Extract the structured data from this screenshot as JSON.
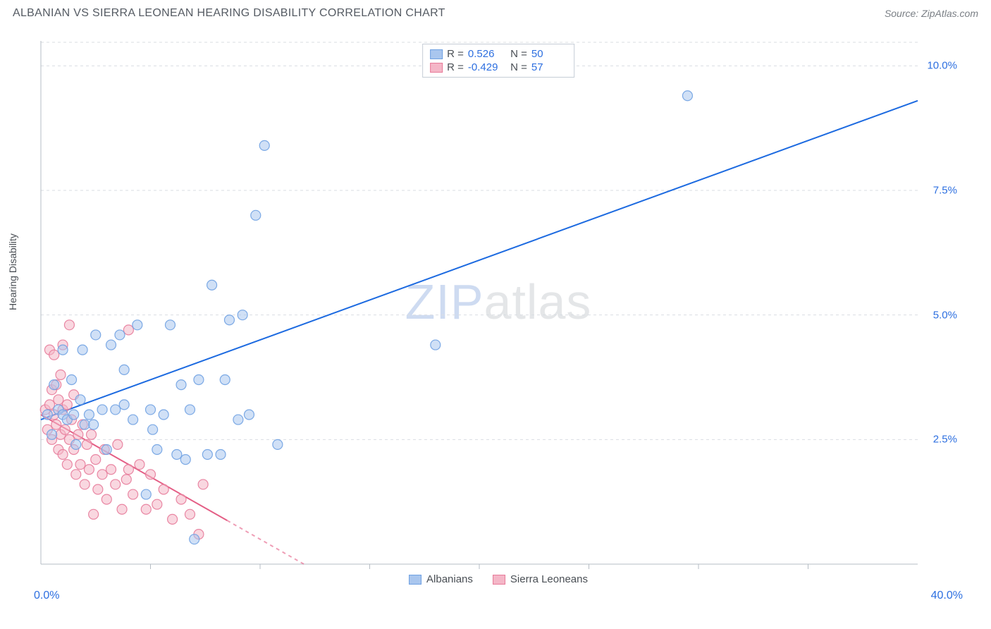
{
  "title": "ALBANIAN VS SIERRA LEONEAN HEARING DISABILITY CORRELATION CHART",
  "source": "Source: ZipAtlas.com",
  "ylabel": "Hearing Disability",
  "watermark": {
    "z": "ZIP",
    "rest": "atlas"
  },
  "chart": {
    "type": "scatter",
    "xlim": [
      0,
      40
    ],
    "ylim": [
      0,
      10.5
    ],
    "x_origin_label": "0.0%",
    "x_max_label": "40.0%",
    "y_ticks": [
      2.5,
      5.0,
      7.5,
      10.0
    ],
    "y_tick_labels": [
      "2.5%",
      "5.0%",
      "7.5%",
      "10.0%"
    ],
    "x_minor_ticks": [
      5,
      10,
      15,
      20,
      25,
      30,
      35
    ],
    "grid_color": "#d9dde2",
    "grid_dash": "4,4",
    "axis_color": "#b6bcc4",
    "background_color": "#ffffff",
    "marker_radius": 7,
    "marker_opacity": 0.55,
    "marker_stroke_opacity": 0.9,
    "series": [
      {
        "name": "Albanians",
        "color": "#6fa1e2",
        "fill": "#a9c6ee",
        "trend": {
          "x1": 0,
          "y1": 2.9,
          "x2": 40,
          "y2": 9.3,
          "color": "#1c6ae0",
          "width": 2
        },
        "points": [
          [
            0.3,
            3.0
          ],
          [
            0.5,
            2.6
          ],
          [
            0.6,
            3.6
          ],
          [
            0.8,
            3.1
          ],
          [
            1.0,
            3.0
          ],
          [
            1.0,
            4.3
          ],
          [
            1.2,
            2.9
          ],
          [
            1.4,
            3.7
          ],
          [
            1.5,
            3.0
          ],
          [
            1.6,
            2.4
          ],
          [
            1.8,
            3.3
          ],
          [
            1.9,
            4.3
          ],
          [
            2.0,
            2.8
          ],
          [
            2.2,
            3.0
          ],
          [
            2.4,
            2.8
          ],
          [
            2.5,
            4.6
          ],
          [
            2.8,
            3.1
          ],
          [
            3.0,
            2.3
          ],
          [
            3.2,
            4.4
          ],
          [
            3.4,
            3.1
          ],
          [
            3.6,
            4.6
          ],
          [
            3.8,
            3.9
          ],
          [
            4.2,
            2.9
          ],
          [
            4.4,
            4.8
          ],
          [
            4.8,
            1.4
          ],
          [
            5.0,
            3.1
          ],
          [
            5.3,
            2.3
          ],
          [
            5.6,
            3.0
          ],
          [
            5.9,
            4.8
          ],
          [
            6.2,
            2.2
          ],
          [
            6.4,
            3.6
          ],
          [
            6.6,
            2.1
          ],
          [
            6.8,
            3.1
          ],
          [
            7.0,
            0.5
          ],
          [
            7.2,
            3.7
          ],
          [
            7.6,
            2.2
          ],
          [
            7.8,
            5.6
          ],
          [
            8.2,
            2.2
          ],
          [
            8.4,
            3.7
          ],
          [
            8.6,
            4.9
          ],
          [
            9.0,
            2.9
          ],
          [
            9.2,
            5.0
          ],
          [
            9.5,
            3.0
          ],
          [
            9.8,
            7.0
          ],
          [
            10.2,
            8.4
          ],
          [
            10.8,
            2.4
          ],
          [
            18.0,
            4.4
          ],
          [
            29.5,
            9.4
          ],
          [
            3.8,
            3.2
          ],
          [
            5.1,
            2.7
          ]
        ]
      },
      {
        "name": "Sierra Leoneans",
        "color": "#e77b9a",
        "fill": "#f4b6c7",
        "trend": {
          "x1": 0,
          "y1": 3.0,
          "x2": 12,
          "y2": 0,
          "color": "#e45e85",
          "width": 2,
          "dash_after_x": 8.5
        },
        "points": [
          [
            0.2,
            3.1
          ],
          [
            0.3,
            2.7
          ],
          [
            0.4,
            3.2
          ],
          [
            0.4,
            4.3
          ],
          [
            0.5,
            2.5
          ],
          [
            0.5,
            3.5
          ],
          [
            0.6,
            3.0
          ],
          [
            0.6,
            4.2
          ],
          [
            0.7,
            2.8
          ],
          [
            0.7,
            3.6
          ],
          [
            0.8,
            2.3
          ],
          [
            0.8,
            3.3
          ],
          [
            0.9,
            2.6
          ],
          [
            0.9,
            3.8
          ],
          [
            1.0,
            2.2
          ],
          [
            1.0,
            3.1
          ],
          [
            1.0,
            4.4
          ],
          [
            1.1,
            2.7
          ],
          [
            1.2,
            2.0
          ],
          [
            1.2,
            3.2
          ],
          [
            1.3,
            2.5
          ],
          [
            1.3,
            4.8
          ],
          [
            1.4,
            2.9
          ],
          [
            1.5,
            2.3
          ],
          [
            1.5,
            3.4
          ],
          [
            1.6,
            1.8
          ],
          [
            1.7,
            2.6
          ],
          [
            1.8,
            2.0
          ],
          [
            1.9,
            2.8
          ],
          [
            2.0,
            1.6
          ],
          [
            2.1,
            2.4
          ],
          [
            2.2,
            1.9
          ],
          [
            2.3,
            2.6
          ],
          [
            2.4,
            1.0
          ],
          [
            2.5,
            2.1
          ],
          [
            2.6,
            1.5
          ],
          [
            2.8,
            1.8
          ],
          [
            2.9,
            2.3
          ],
          [
            3.0,
            1.3
          ],
          [
            3.2,
            1.9
          ],
          [
            3.4,
            1.6
          ],
          [
            3.5,
            2.4
          ],
          [
            3.7,
            1.1
          ],
          [
            3.9,
            1.7
          ],
          [
            4.0,
            4.7
          ],
          [
            4.2,
            1.4
          ],
          [
            4.5,
            2.0
          ],
          [
            4.8,
            1.1
          ],
          [
            5.0,
            1.8
          ],
          [
            5.3,
            1.2
          ],
          [
            5.6,
            1.5
          ],
          [
            6.0,
            0.9
          ],
          [
            6.4,
            1.3
          ],
          [
            6.8,
            1.0
          ],
          [
            7.2,
            0.6
          ],
          [
            7.4,
            1.6
          ],
          [
            4.0,
            1.9
          ]
        ]
      }
    ]
  },
  "stats_legend": [
    {
      "swatch_fill": "#a9c6ee",
      "swatch_border": "#6fa1e2",
      "r": "0.526",
      "n": "50"
    },
    {
      "swatch_fill": "#f4b6c7",
      "swatch_border": "#e77b9a",
      "r": "-0.429",
      "n": "57"
    }
  ],
  "bottom_legend": [
    {
      "label": "Albanians",
      "fill": "#a9c6ee",
      "border": "#6fa1e2"
    },
    {
      "label": "Sierra Leoneans",
      "fill": "#f4b6c7",
      "border": "#e77b9a"
    }
  ]
}
